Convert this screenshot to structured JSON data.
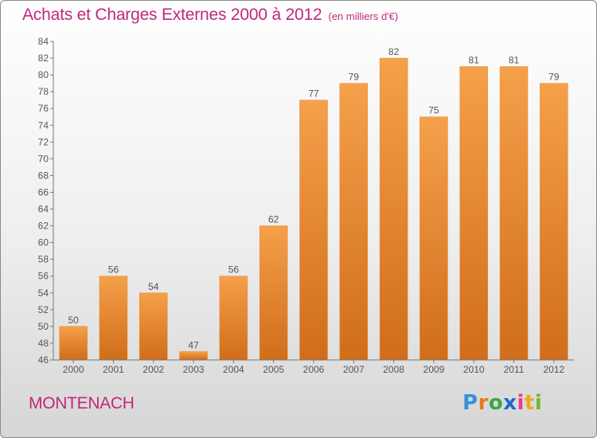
{
  "header": {
    "title": "Achats et Charges Externes 2000 à 2012",
    "unit": "(en milliers d'€)"
  },
  "footer": {
    "commune": "MONTENACH",
    "logo_letters": [
      "P",
      "r",
      "o",
      "x",
      "i",
      "t",
      "i"
    ]
  },
  "colors": {
    "bar_light": "#f5a04a",
    "bar_dark": "#d06d1a",
    "title": "#c0287a",
    "axis": "#555555"
  },
  "chart_data": {
    "type": "bar",
    "title": "Achats et Charges Externes 2000 à 2012",
    "xlabel": "",
    "ylabel": "",
    "categories": [
      "2000",
      "2001",
      "2002",
      "2003",
      "2004",
      "2005",
      "2006",
      "2007",
      "2008",
      "2009",
      "2010",
      "2011",
      "2012"
    ],
    "values": [
      50,
      56,
      54,
      47,
      56,
      62,
      77,
      79,
      82,
      75,
      81,
      81,
      79
    ],
    "ylim": [
      46,
      84
    ],
    "yticks": [
      46,
      48,
      50,
      52,
      54,
      56,
      58,
      60,
      62,
      64,
      66,
      68,
      70,
      72,
      74,
      76,
      78,
      80,
      82,
      84
    ],
    "grid": false,
    "data_labels": true
  }
}
